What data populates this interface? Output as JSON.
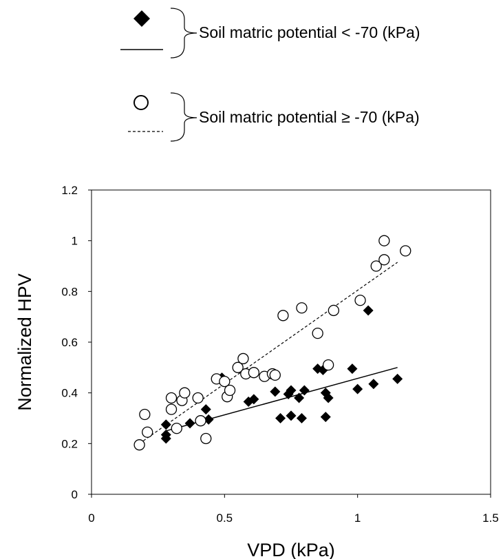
{
  "chart_data": {
    "type": "scatter",
    "xlabel": "VPD (kPa)",
    "ylabel": "Normalized HPV",
    "xlim": [
      0,
      1.5
    ],
    "ylim": [
      0,
      1.2
    ],
    "x_ticks": [
      "0",
      "0.5",
      "1",
      "1.5"
    ],
    "y_ticks": [
      "0",
      "0.2",
      "0.4",
      "0.6",
      "0.8",
      "1",
      "1.2"
    ],
    "grid": false,
    "legend_position": "top",
    "series": [
      {
        "name": "Soil matric potential < -70 (kPa)",
        "marker": "filled-diamond",
        "line": "solid",
        "color": "#000000",
        "points": [
          [
            0.28,
            0.22
          ],
          [
            0.28,
            0.235
          ],
          [
            0.28,
            0.275
          ],
          [
            0.37,
            0.28
          ],
          [
            0.43,
            0.335
          ],
          [
            0.44,
            0.295
          ],
          [
            0.49,
            0.46
          ],
          [
            0.59,
            0.365
          ],
          [
            0.61,
            0.375
          ],
          [
            0.69,
            0.405
          ],
          [
            0.71,
            0.3
          ],
          [
            0.74,
            0.395
          ],
          [
            0.75,
            0.31
          ],
          [
            0.75,
            0.41
          ],
          [
            0.78,
            0.38
          ],
          [
            0.79,
            0.3
          ],
          [
            0.8,
            0.41
          ],
          [
            0.85,
            0.495
          ],
          [
            0.87,
            0.49
          ],
          [
            0.88,
            0.305
          ],
          [
            0.88,
            0.4
          ],
          [
            0.89,
            0.38
          ],
          [
            0.98,
            0.495
          ],
          [
            1.0,
            0.415
          ],
          [
            1.04,
            0.725
          ],
          [
            1.06,
            0.435
          ],
          [
            1.15,
            0.455
          ]
        ],
        "trendline": [
          [
            0.28,
            0.25
          ],
          [
            1.15,
            0.5
          ]
        ]
      },
      {
        "name": "Soil matric potential ≥ -70 (kPa)",
        "marker": "open-circle",
        "line": "dashed",
        "color": "#000000",
        "points": [
          [
            0.18,
            0.195
          ],
          [
            0.2,
            0.315
          ],
          [
            0.21,
            0.245
          ],
          [
            0.3,
            0.38
          ],
          [
            0.3,
            0.335
          ],
          [
            0.32,
            0.26
          ],
          [
            0.34,
            0.37
          ],
          [
            0.35,
            0.4
          ],
          [
            0.4,
            0.38
          ],
          [
            0.41,
            0.29
          ],
          [
            0.43,
            0.22
          ],
          [
            0.47,
            0.455
          ],
          [
            0.5,
            0.445
          ],
          [
            0.51,
            0.385
          ],
          [
            0.52,
            0.41
          ],
          [
            0.55,
            0.5
          ],
          [
            0.57,
            0.535
          ],
          [
            0.58,
            0.475
          ],
          [
            0.61,
            0.48
          ],
          [
            0.65,
            0.465
          ],
          [
            0.68,
            0.475
          ],
          [
            0.69,
            0.47
          ],
          [
            0.72,
            0.705
          ],
          [
            0.79,
            0.735
          ],
          [
            0.85,
            0.635
          ],
          [
            0.89,
            0.51
          ],
          [
            0.91,
            0.725
          ],
          [
            1.01,
            0.765
          ],
          [
            1.07,
            0.9
          ],
          [
            1.1,
            1.0
          ],
          [
            1.1,
            0.925
          ],
          [
            1.18,
            0.96
          ]
        ],
        "trendline": [
          [
            0.18,
            0.2
          ],
          [
            1.15,
            0.915
          ]
        ]
      }
    ]
  }
}
